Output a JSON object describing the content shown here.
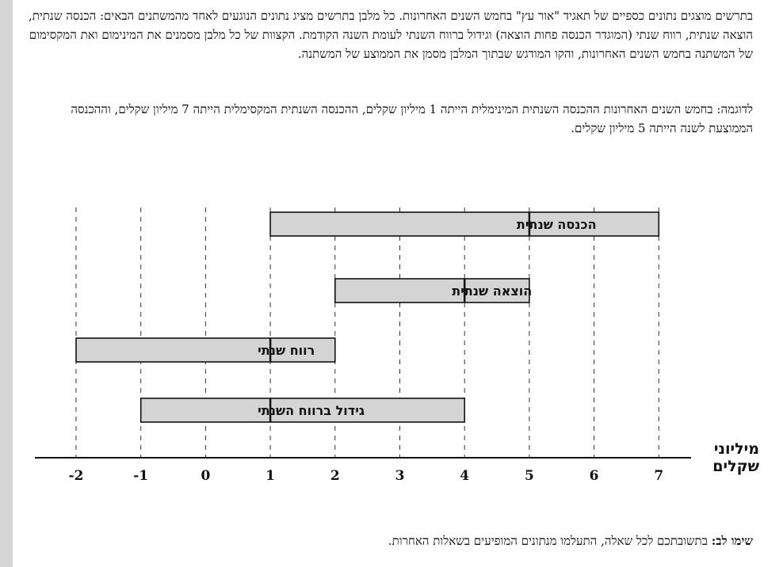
{
  "intro_text": "בתרשים מוצגים נתונים כספיים של תאגיד \"אור עץ\" בחמש השנים האחרונות.  כל מלבן בתרשים מציג נתונים הנוגעים לאחד מהמשתנים הבאים: הכנסה שנתית, הוצאה שנתית, רווח שנתי (המוגדר הכנסה פחות הוצאה) וגידול ברווח השנתי לעומת השנה הקודמת.  הקצוות של כל מלבן מסמנים את המינימום ואת המקסימום של המשתנה בחמש השנים האחרונות, והקו המודגש שבתוך המלבן מסמן את הממוצע של המשתנה.",
  "example_text": "לדוגמה: בחמש השנים האחרונות ההכנסה השנתית המינימלית הייתה 1 מיליון שקלים, ההכנסה השנתית המקסימלית הייתה 7 מיליון שקלים, וההכנסה הממוצעת לשנה הייתה 5 מיליון שקלים.",
  "note_label": "שימו לב:",
  "note_text": " בתשובתכם לכל שאלה, התעלמו מנתונים המופיעים בשאלות האחרות.",
  "chart_data": {
    "type": "bar",
    "orientation": "horizontal-range",
    "xlabel": "מיליוני שקלים",
    "xlabel_lines": [
      "מיליוני",
      "שקלים"
    ],
    "xlim": [
      -2,
      7
    ],
    "xticks": [
      -2,
      -1,
      0,
      1,
      2,
      3,
      4,
      5,
      6,
      7
    ],
    "xtick_labels": [
      "-2",
      "-1",
      "0",
      "1",
      "2",
      "3",
      "4",
      "5",
      "6",
      "7"
    ],
    "grid": "vertical dashed",
    "bar_fill": "#d4d4d4",
    "bars": [
      {
        "label": "הכנסה שנתית",
        "min": 1,
        "max": 7,
        "mean": 5
      },
      {
        "label": "הוצאה שנתית",
        "min": 2,
        "max": 5,
        "mean": 4
      },
      {
        "label": "רווח שנתי",
        "min": -2,
        "max": 2,
        "mean": 1
      },
      {
        "label": "גידול ברווח השנתי",
        "min": -1,
        "max": 4,
        "mean": 1
      }
    ]
  }
}
